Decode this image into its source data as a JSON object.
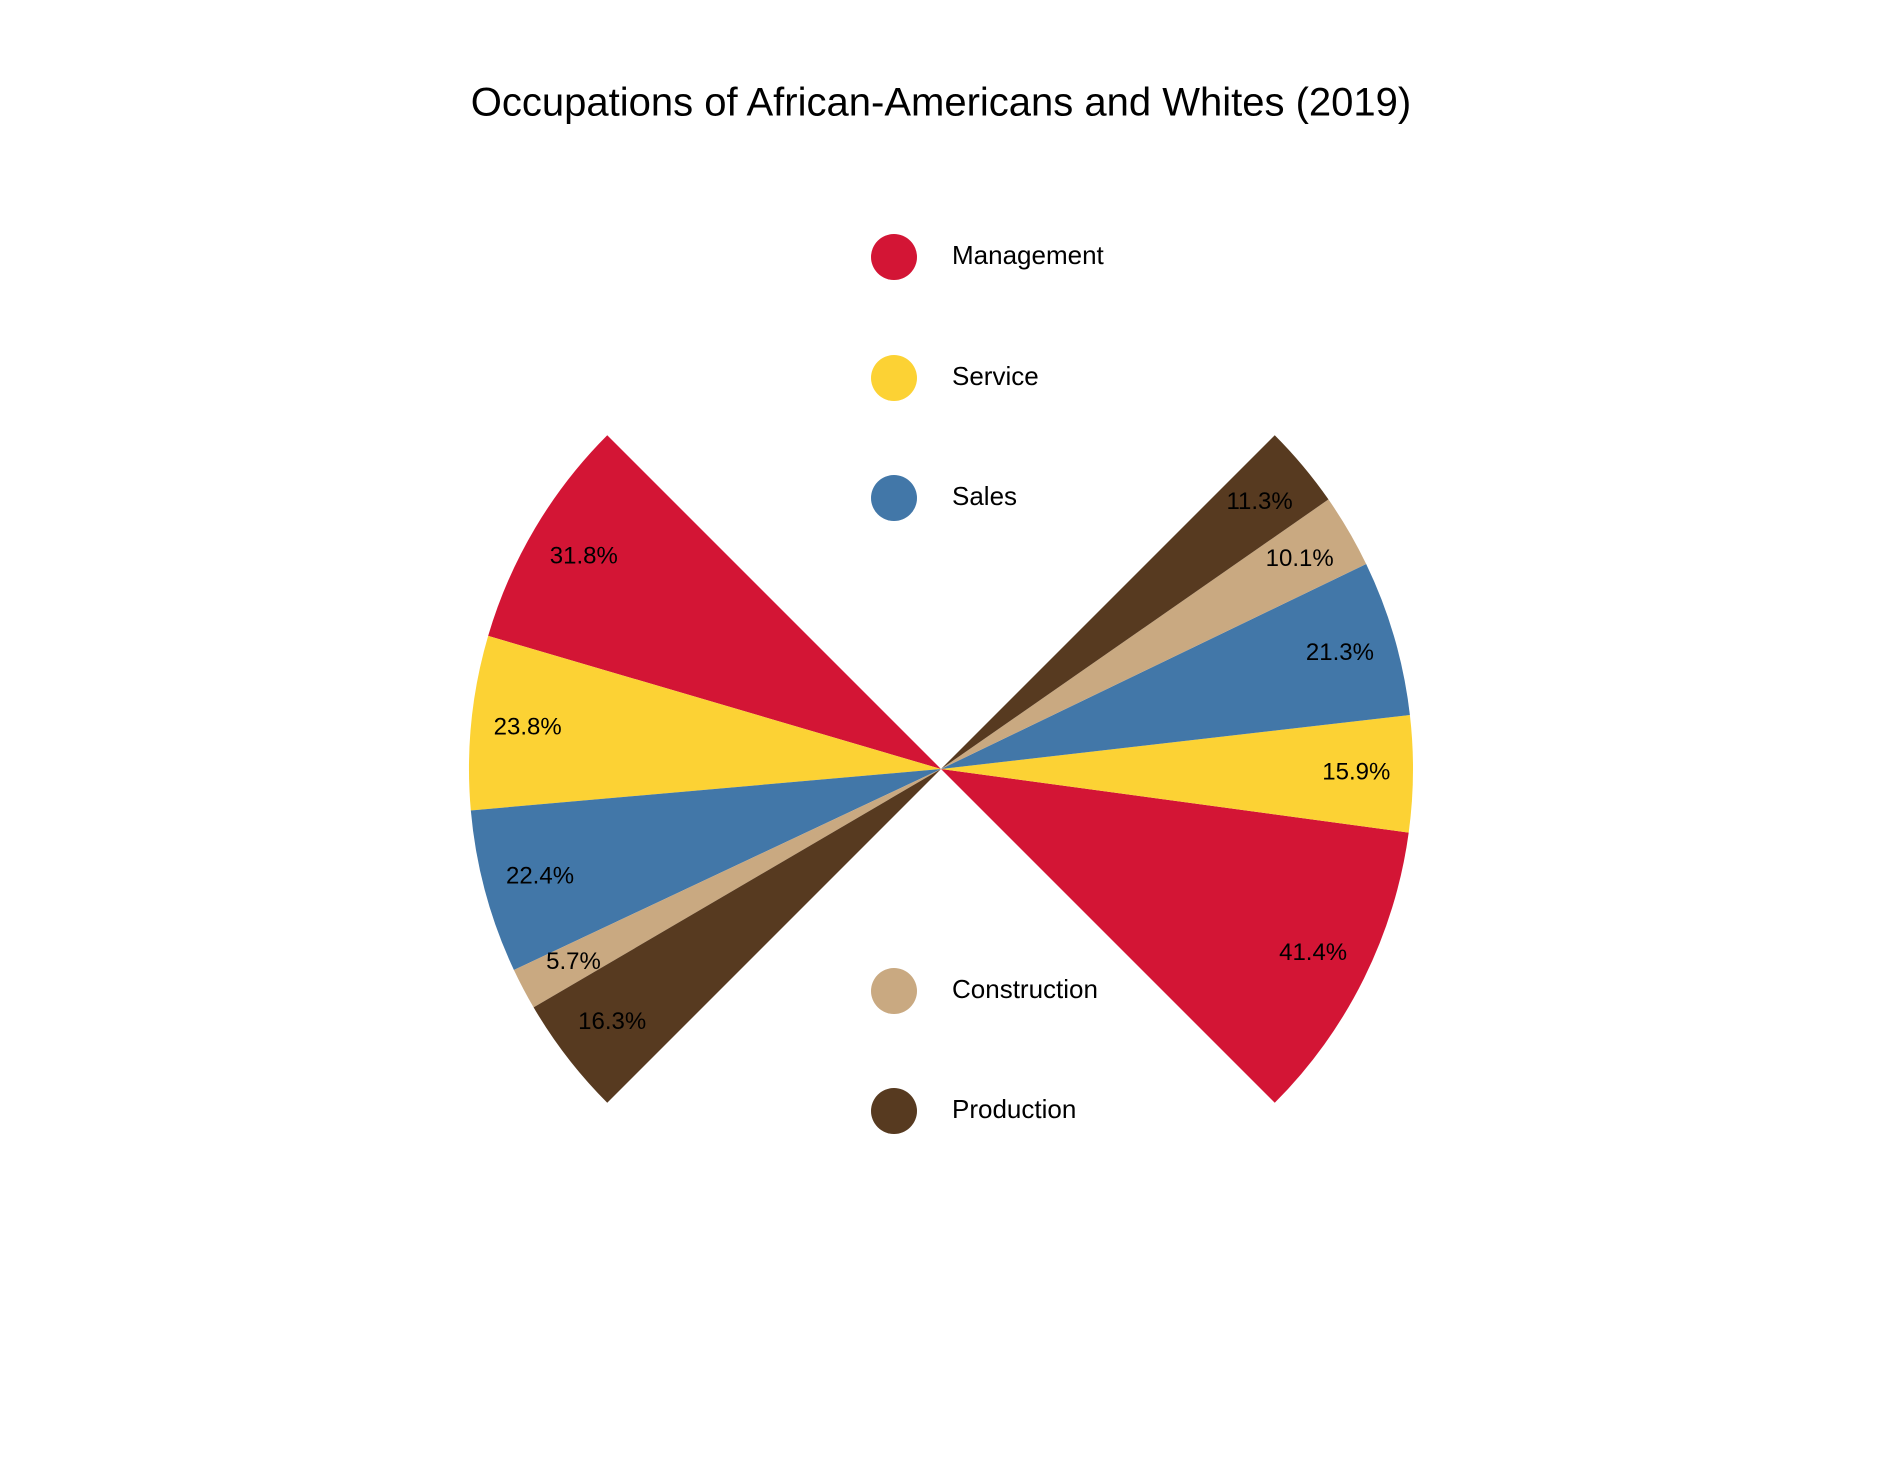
{
  "chart_data": {
    "type": "pie",
    "title": "Occupations of African-Americans and Whites (2019)",
    "categories": [
      "Management",
      "Service",
      "Sales",
      "Construction",
      "Production"
    ],
    "colors": [
      "#d31535",
      "#fcd234",
      "#4277a8",
      "#c9a981",
      "#573a20"
    ],
    "series": [
      {
        "values": [
          31.8,
          23.8,
          22.4,
          5.7,
          16.3
        ],
        "value_labels": [
          "31.8%",
          "23.8%",
          "22.4%",
          "5.7%",
          "16.3%"
        ]
      },
      {
        "values": [
          41.4,
          15.9,
          21.3,
          10.1,
          11.3
        ],
        "value_labels": [
          "41.4%",
          "15.9%",
          "21.3%",
          "10.1%",
          "11.3%"
        ]
      }
    ]
  }
}
